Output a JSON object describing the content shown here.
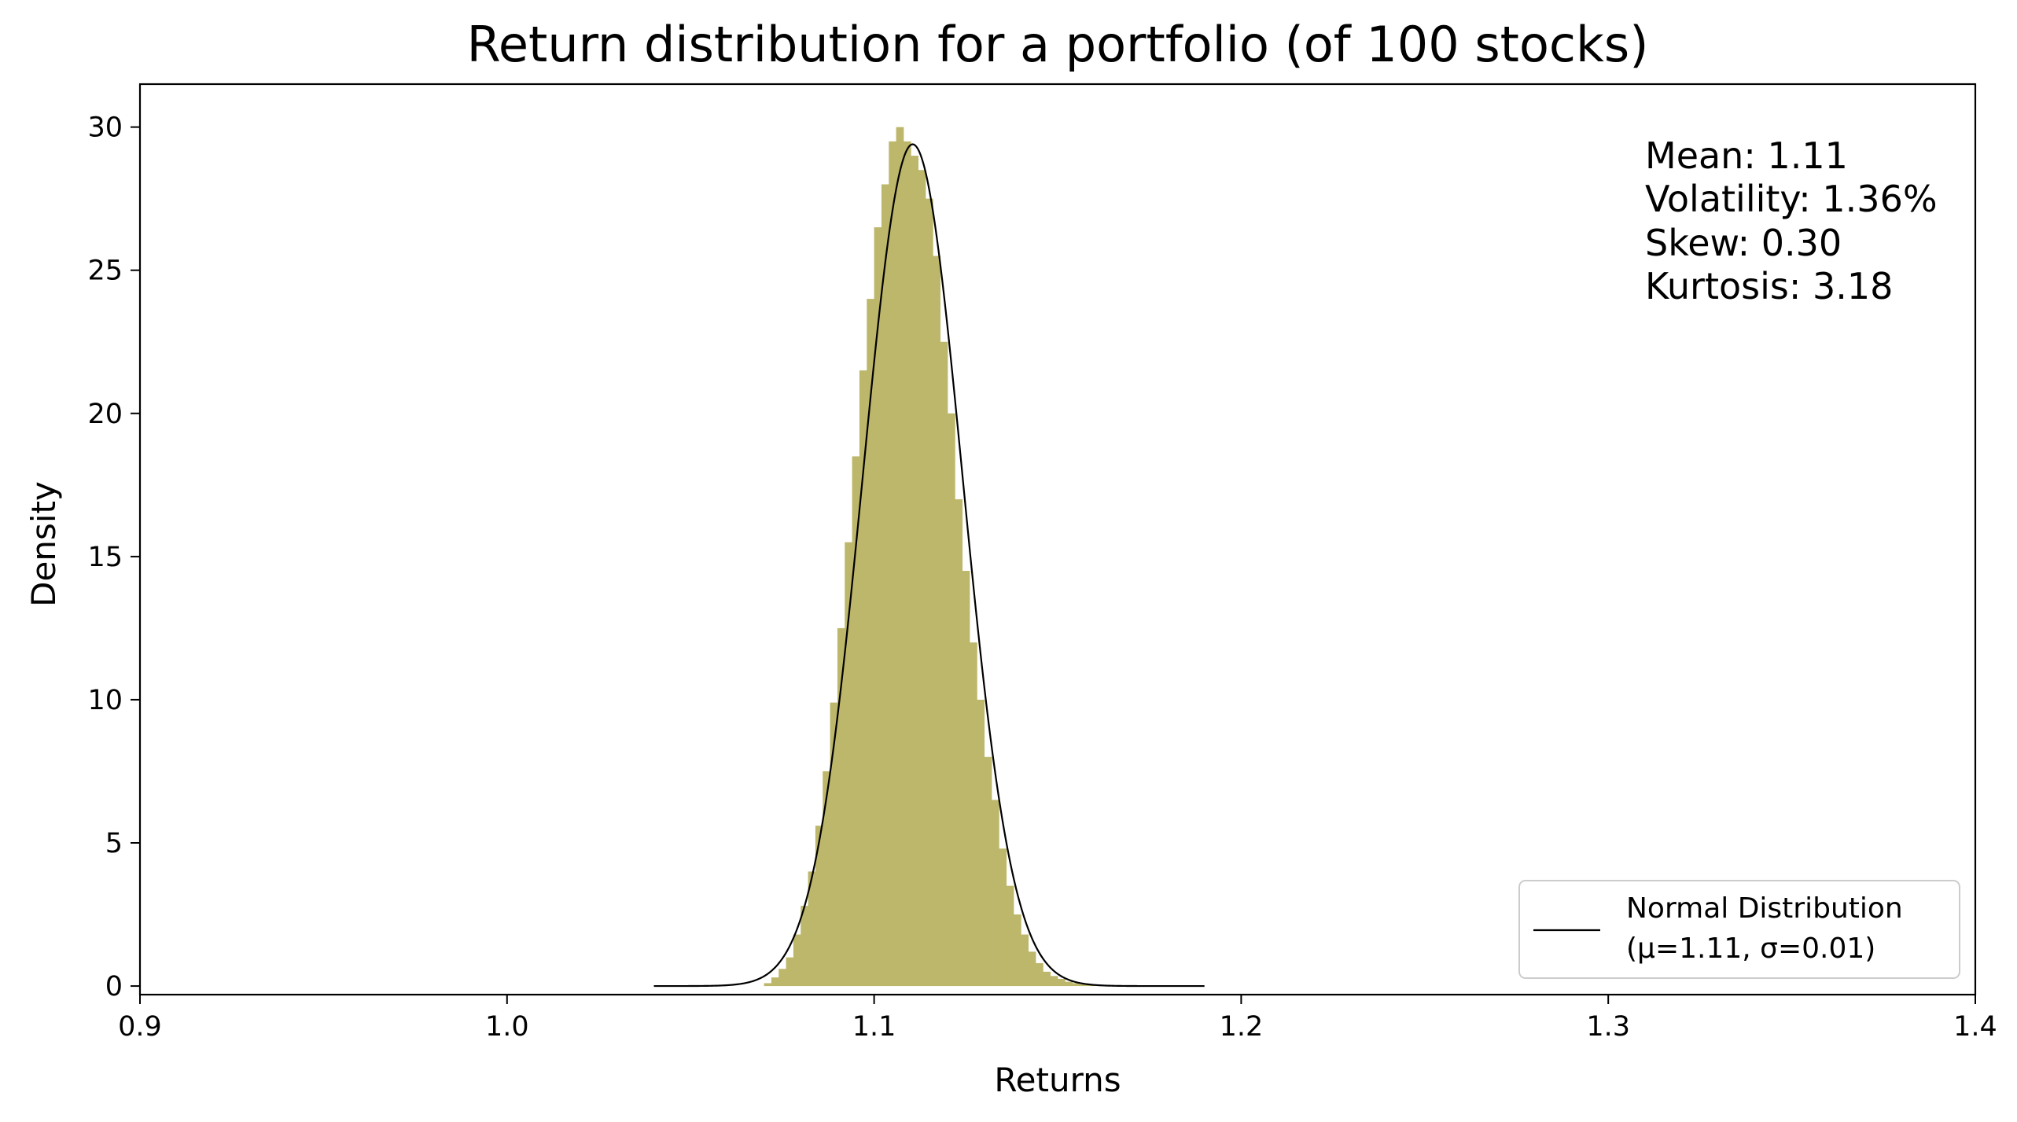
{
  "chart_data": {
    "type": "bar",
    "title": "Return distribution for a portfolio (of 100 stocks)",
    "xlabel": "Returns",
    "ylabel": "Density",
    "xlim": [
      0.9,
      1.4
    ],
    "ylim": [
      -0.3,
      30
    ],
    "x_ticks": [
      "0.9",
      "1.0",
      "1.1",
      "1.2",
      "1.3",
      "1.4"
    ],
    "y_ticks": [
      "0",
      "5",
      "10",
      "15",
      "20",
      "25",
      "30"
    ],
    "grid": false,
    "histogram_color": "#bdb76b",
    "line_color": "#000000",
    "series": [
      {
        "kind": "histogram",
        "bins": [
          [
            1.07,
            0.1
          ],
          [
            1.072,
            0.3
          ],
          [
            1.074,
            0.6
          ],
          [
            1.076,
            1.0
          ],
          [
            1.078,
            1.8
          ],
          [
            1.08,
            2.8
          ],
          [
            1.082,
            4.0
          ],
          [
            1.084,
            5.6
          ],
          [
            1.086,
            7.5
          ],
          [
            1.088,
            9.9
          ],
          [
            1.09,
            12.5
          ],
          [
            1.092,
            15.5
          ],
          [
            1.094,
            18.5
          ],
          [
            1.096,
            21.5
          ],
          [
            1.098,
            24.0
          ],
          [
            1.1,
            26.5
          ],
          [
            1.102,
            28.0
          ],
          [
            1.104,
            29.5
          ],
          [
            1.106,
            30.0
          ],
          [
            1.108,
            29.5
          ],
          [
            1.11,
            29.0
          ],
          [
            1.112,
            28.5
          ],
          [
            1.114,
            27.5
          ],
          [
            1.116,
            25.5
          ],
          [
            1.118,
            22.5
          ],
          [
            1.12,
            20.0
          ],
          [
            1.122,
            17.0
          ],
          [
            1.124,
            14.5
          ],
          [
            1.126,
            12.0
          ],
          [
            1.128,
            10.0
          ],
          [
            1.13,
            8.0
          ],
          [
            1.132,
            6.5
          ],
          [
            1.134,
            4.8
          ],
          [
            1.136,
            3.5
          ],
          [
            1.138,
            2.5
          ],
          [
            1.14,
            1.8
          ],
          [
            1.142,
            1.2
          ],
          [
            1.144,
            0.8
          ],
          [
            1.146,
            0.5
          ],
          [
            1.148,
            0.35
          ],
          [
            1.15,
            0.25
          ],
          [
            1.152,
            0.15
          ],
          [
            1.154,
            0.1
          ],
          [
            1.156,
            0.06
          ],
          [
            1.158,
            0.04
          ]
        ],
        "bin_width": 0.002
      },
      {
        "kind": "line",
        "name": "Normal Distribution\n(μ=1.11, σ=0.01)",
        "mu": 1.1105,
        "sigma": 0.01357,
        "x_range": [
          1.04,
          1.19
        ]
      }
    ],
    "legend": {
      "position": "bottom-right",
      "line1": "Normal Distribution",
      "line2": "(μ=1.11, σ=0.01)"
    },
    "annotations": {
      "position": "top-right",
      "lines": [
        "Mean: 1.11",
        "Volatility: 1.36%",
        "Skew: 0.30",
        "Kurtosis: 3.18"
      ]
    }
  }
}
